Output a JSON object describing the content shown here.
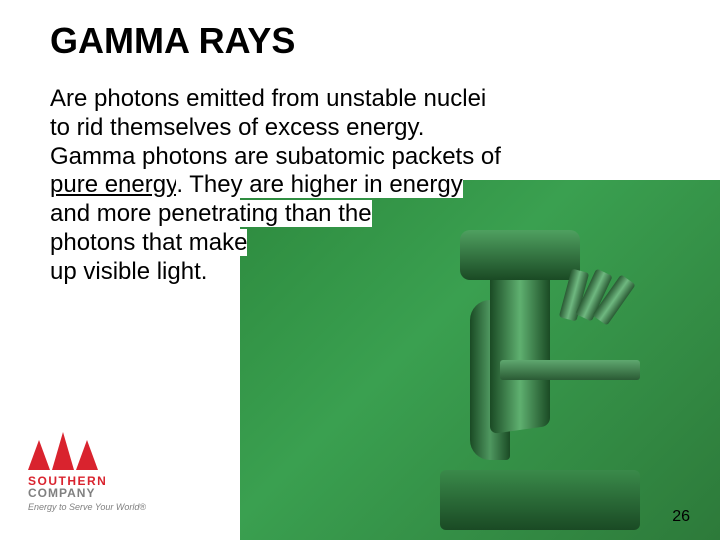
{
  "title": "GAMMA RAYS",
  "body": {
    "line1": "Are photons emitted from unstable nuclei",
    "line2": "to rid themselves of excess energy.",
    "line3a": "Gamma photons are subatomic packets of ",
    "underlined": "pure energy",
    "line3b": ". They are higher in energy",
    "line4": "and more penetrating than the",
    "line5": "photons that make",
    "line6": "up visible light."
  },
  "logo": {
    "name": "SOUTHERN",
    "sub": "COMPANY",
    "tagline": "Energy to Serve Your World®"
  },
  "page_number": "26",
  "colors": {
    "bg_green": "#3aa050",
    "logo_red": "#d9232e",
    "text": "#000000"
  }
}
